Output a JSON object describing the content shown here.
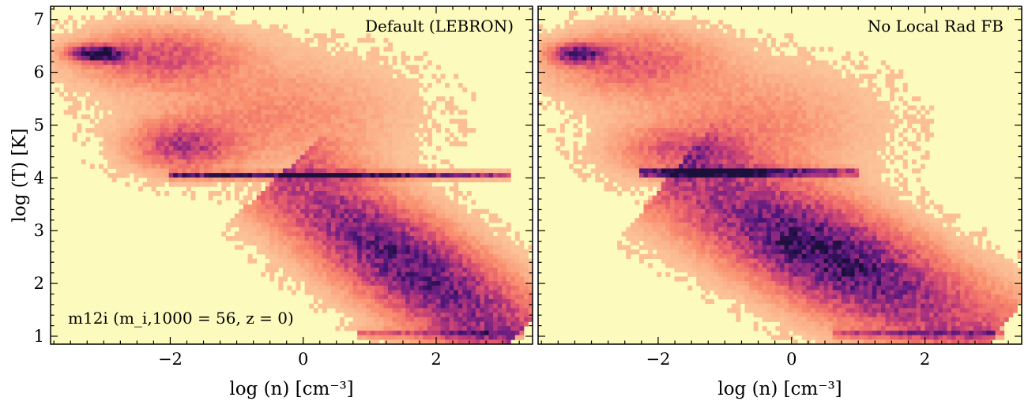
{
  "figure": {
    "colormap": [
      "#fbf7b7",
      "#fcc89c",
      "#f98e6e",
      "#e85e6c",
      "#b7377a",
      "#7b2382",
      "#4a1477",
      "#1c0f3b"
    ],
    "background_color": "#fdfabd",
    "shared_ylabel": "log (T) [K]",
    "shared_xlabel": "log (n) [cm⁻³]"
  },
  "chart_data": [
    {
      "type": "heatmap",
      "title": "Default (LEBRON)",
      "annotation": "m12i (m_i,1000 = 56, z = 0)",
      "xlabel": "log (n) [cm⁻³]",
      "ylabel": "log (T) [K]",
      "xlim": [
        -3.8,
        3.45
      ],
      "ylim": [
        0.85,
        7.25
      ],
      "xticks": [
        -2,
        0,
        2
      ],
      "xtick_labels": [
        "−2",
        "0",
        "2"
      ],
      "yticks": [
        1,
        2,
        3,
        4,
        5,
        6,
        7
      ],
      "ytick_labels": [
        "1",
        "2",
        "3",
        "4",
        "5",
        "6",
        "7"
      ],
      "components": [
        {
          "label": "hot halo blob",
          "x": -3.1,
          "y": 6.35,
          "sx": 0.25,
          "sy": 0.1,
          "density": 1.0
        },
        {
          "label": "hot halo",
          "x": -2.2,
          "y": 6.3,
          "sx": 0.8,
          "sy": 0.35,
          "density": 0.4
        },
        {
          "label": "hot diffuse",
          "x": -0.5,
          "y": 5.2,
          "sx": 1.3,
          "sy": 0.7,
          "density": 0.2
        },
        {
          "label": "warm diffuse",
          "x": -1.8,
          "y": 4.6,
          "sx": 0.5,
          "sy": 0.3,
          "density": 0.45
        },
        {
          "label": "T=1e4 plateau",
          "x_range": [
            -2.0,
            3.1
          ],
          "y": 4.05,
          "sy": 0.04,
          "peak_x": 0.2,
          "density": 0.9
        },
        {
          "label": "cold ISM",
          "diagonal_from": [
            -0.2,
            3.9
          ],
          "diagonal_to": [
            3.0,
            1.1
          ],
          "width": 0.55,
          "peak_x": 1.6,
          "density": 0.8
        },
        {
          "label": "cold floor",
          "x_range": [
            0.8,
            3.3
          ],
          "y": 1.05,
          "sy": 0.05,
          "density": 0.3
        }
      ]
    },
    {
      "type": "heatmap",
      "title": "No Local Rad FB",
      "annotation": "",
      "xlabel": "log (n) [cm⁻³]",
      "ylabel": "",
      "xlim": [
        -3.8,
        3.45
      ],
      "ylim": [
        0.85,
        7.25
      ],
      "xticks": [
        -2,
        0,
        2
      ],
      "xtick_labels": [
        "−2",
        "0",
        "2"
      ],
      "yticks": [
        1,
        2,
        3,
        4,
        5,
        6,
        7
      ],
      "ytick_labels": [],
      "components": [
        {
          "label": "hot halo blob",
          "x": -3.2,
          "y": 6.35,
          "sx": 0.25,
          "sy": 0.12,
          "density": 0.75
        },
        {
          "label": "hot halo",
          "x": -2.4,
          "y": 6.2,
          "sx": 0.8,
          "sy": 0.4,
          "density": 0.35
        },
        {
          "label": "hot diffuse",
          "x": -0.7,
          "y": 5.0,
          "sx": 1.2,
          "sy": 0.7,
          "density": 0.2
        },
        {
          "label": "warm diffuse",
          "x": -1.7,
          "y": 4.5,
          "sx": 0.6,
          "sy": 0.3,
          "density": 0.3
        },
        {
          "label": "T=1e4 plateau",
          "x_range": [
            -2.3,
            1.0
          ],
          "y": 4.1,
          "sy": 0.05,
          "peak_x": -1.2,
          "density": 1.0
        },
        {
          "label": "cold ISM",
          "diagonal_from": [
            -1.6,
            3.9
          ],
          "diagonal_to": [
            2.8,
            1.1
          ],
          "width": 0.6,
          "peak_x": 0.5,
          "density": 0.9
        },
        {
          "label": "cold floor",
          "x_range": [
            0.6,
            3.2
          ],
          "y": 1.05,
          "sy": 0.05,
          "density": 0.3
        }
      ]
    }
  ]
}
